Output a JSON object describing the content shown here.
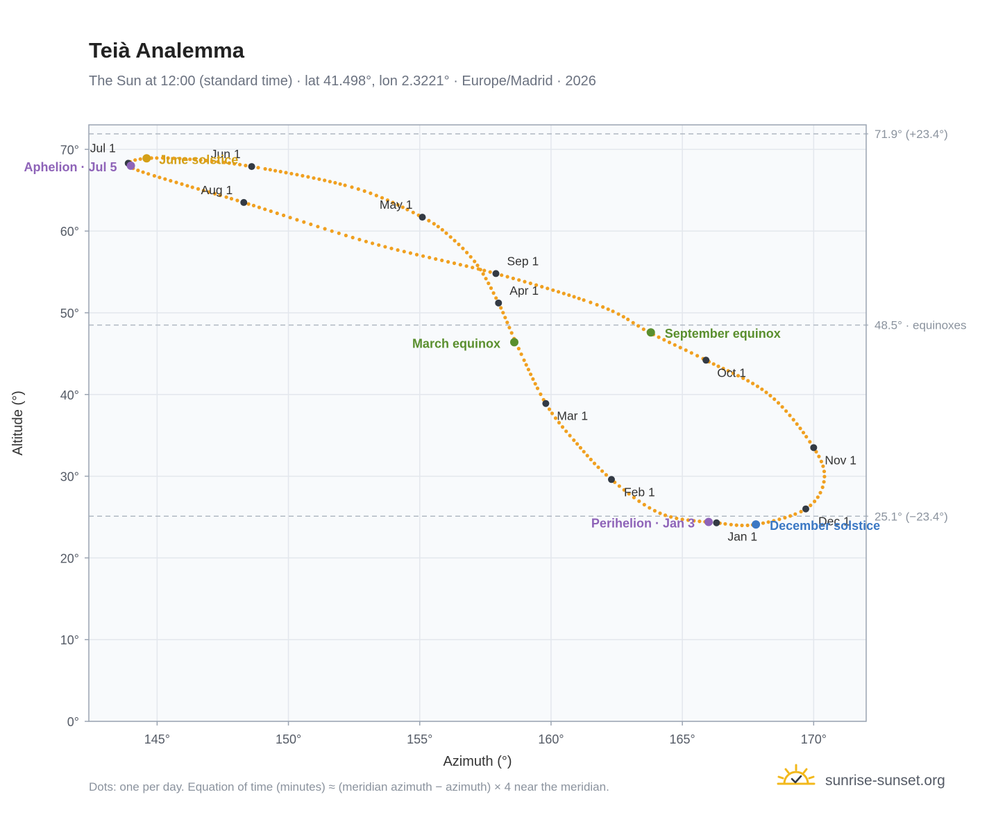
{
  "chart_data": {
    "type": "scatter",
    "title": "Teià Analemma",
    "subtitle": "The Sun at 12:00 (standard time) · lat 41.498°, lon 2.3221° · Europe/Madrid · 2026",
    "xlabel": "Azimuth (°)",
    "ylabel": "Altitude (°)",
    "xlim": [
      142.4,
      172.0
    ],
    "ylim": [
      0,
      73
    ],
    "x_ticks": [
      145,
      150,
      155,
      160,
      165,
      170
    ],
    "x_tick_labels": [
      "145°",
      "150°",
      "155°",
      "160°",
      "165°",
      "170°"
    ],
    "y_ticks": [
      0,
      10,
      20,
      30,
      40,
      50,
      60,
      70
    ],
    "y_tick_labels": [
      "0°",
      "10°",
      "20°",
      "30°",
      "40°",
      "50°",
      "60°",
      "70°"
    ],
    "grid": true,
    "reference_lines": [
      {
        "y": 71.9,
        "label": "71.9° (+23.4°)"
      },
      {
        "y": 48.5,
        "label": "48.5° · equinoxes"
      },
      {
        "y": 25.1,
        "label": "25.1° (−23.4°)"
      }
    ],
    "path_points": [
      [
        166.3,
        24.3
      ],
      [
        164.2,
        25.4
      ],
      [
        162.3,
        29.6
      ],
      [
        160.9,
        34.3
      ],
      [
        159.8,
        38.9
      ],
      [
        158.7,
        46.1
      ],
      [
        158.0,
        51.2
      ],
      [
        157.2,
        55.8
      ],
      [
        156.2,
        59.2
      ],
      [
        155.1,
        61.7
      ],
      [
        152.5,
        65.3
      ],
      [
        148.6,
        67.9
      ],
      [
        146.2,
        68.8
      ],
      [
        144.6,
        68.9
      ],
      [
        143.9,
        68.3
      ],
      [
        144.3,
        67.4
      ],
      [
        146.2,
        65.5
      ],
      [
        148.3,
        63.5
      ],
      [
        153.2,
        58.5
      ],
      [
        157.9,
        54.8
      ],
      [
        161.9,
        50.8
      ],
      [
        163.8,
        47.5
      ],
      [
        165.9,
        44.2
      ],
      [
        168.3,
        40.0
      ],
      [
        170.0,
        33.5
      ],
      [
        170.4,
        29.5
      ],
      [
        169.7,
        26.0
      ],
      [
        167.8,
        24.1
      ],
      [
        166.3,
        24.3
      ]
    ],
    "month_markers": [
      {
        "label": "Jan 1",
        "x": 166.3,
        "y": 24.3
      },
      {
        "label": "Feb 1",
        "x": 162.3,
        "y": 29.6
      },
      {
        "label": "Mar 1",
        "x": 159.8,
        "y": 38.9
      },
      {
        "label": "Apr 1",
        "x": 158.0,
        "y": 51.2
      },
      {
        "label": "May 1",
        "x": 155.1,
        "y": 61.7
      },
      {
        "label": "Jun 1",
        "x": 148.6,
        "y": 67.9
      },
      {
        "label": "Jul 1",
        "x": 143.9,
        "y": 68.3
      },
      {
        "label": "Aug 1",
        "x": 148.3,
        "y": 63.5
      },
      {
        "label": "Sep 1",
        "x": 157.9,
        "y": 54.8
      },
      {
        "label": "Oct 1",
        "x": 165.9,
        "y": 44.2
      },
      {
        "label": "Nov 1",
        "x": 170.0,
        "y": 33.5
      },
      {
        "label": "Dec 1",
        "x": 169.7,
        "y": 26.0
      }
    ],
    "events": [
      {
        "label": "June solstice",
        "x": 144.6,
        "y": 68.9,
        "color": "#d4a017"
      },
      {
        "label": "Aphelion · Jul 5",
        "x": 144.0,
        "y": 68.0,
        "color": "#8e63b8"
      },
      {
        "label": "March equinox",
        "x": 158.6,
        "y": 46.4,
        "color": "#5a8f2e"
      },
      {
        "label": "September equinox",
        "x": 163.8,
        "y": 47.6,
        "color": "#5a8f2e"
      },
      {
        "label": "Perihelion · Jan 3",
        "x": 166.0,
        "y": 24.4,
        "color": "#8e63b8"
      },
      {
        "label": "December solstice",
        "x": 167.8,
        "y": 24.1,
        "color": "#3b78c4"
      }
    ],
    "colors": {
      "curve": "#f0a020",
      "marker": "#333a44",
      "plot_bg": "#f8fafc",
      "frame": "#9aa4b2",
      "grid": "#e3e7ed",
      "ref_line": "#b0b8c2"
    }
  },
  "footnote": "Dots: one per day. Equation of time (minutes) ≈ (meridian azimuth − azimuth) × 4 near the meridian.",
  "brand": {
    "name": "sunrise-sunset.org",
    "icon": "sun-check-icon"
  }
}
